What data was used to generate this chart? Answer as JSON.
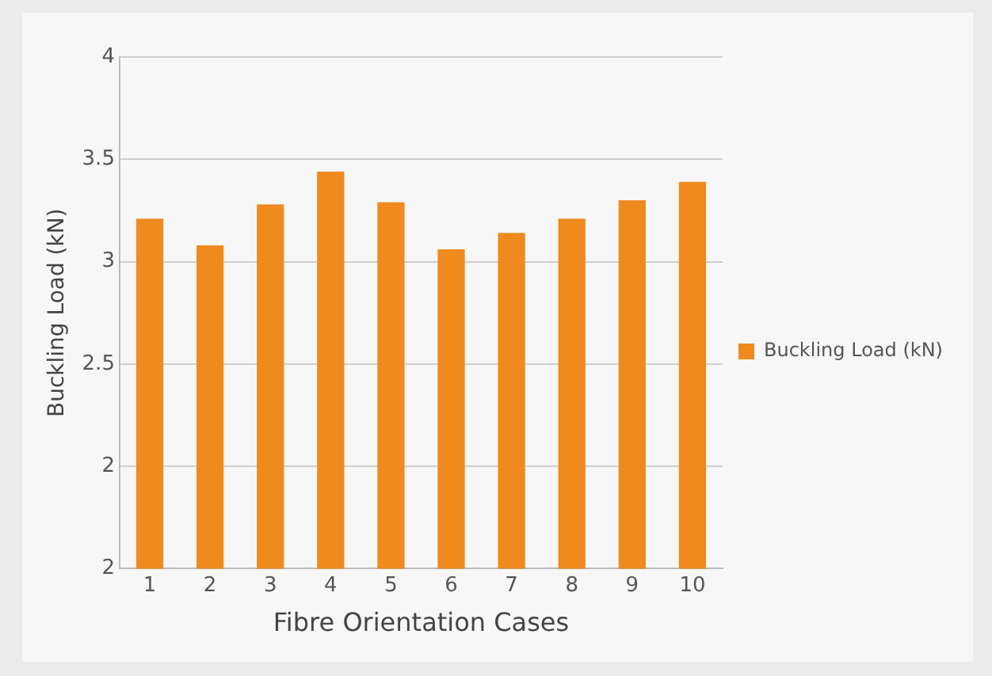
{
  "chart_data": {
    "type": "bar",
    "xlabel": "Fibre Orientation Cases",
    "ylabel": "Buckling Load (kN)",
    "categories": [
      "1",
      "2",
      "3",
      "4",
      "5",
      "6",
      "7",
      "8",
      "9",
      "10"
    ],
    "series": [
      {
        "name": "Buckling Load (kN)",
        "color": "#ee8a1e",
        "values": [
          3.21,
          3.08,
          3.28,
          3.44,
          3.29,
          3.06,
          3.14,
          3.21,
          3.3,
          3.39
        ]
      }
    ],
    "ylim": [
      1.5,
      4
    ],
    "yticks": [
      {
        "value": 1.5,
        "label": "2"
      },
      2,
      2.5,
      3,
      3.5,
      4
    ],
    "grid": "y",
    "legend": "right"
  }
}
